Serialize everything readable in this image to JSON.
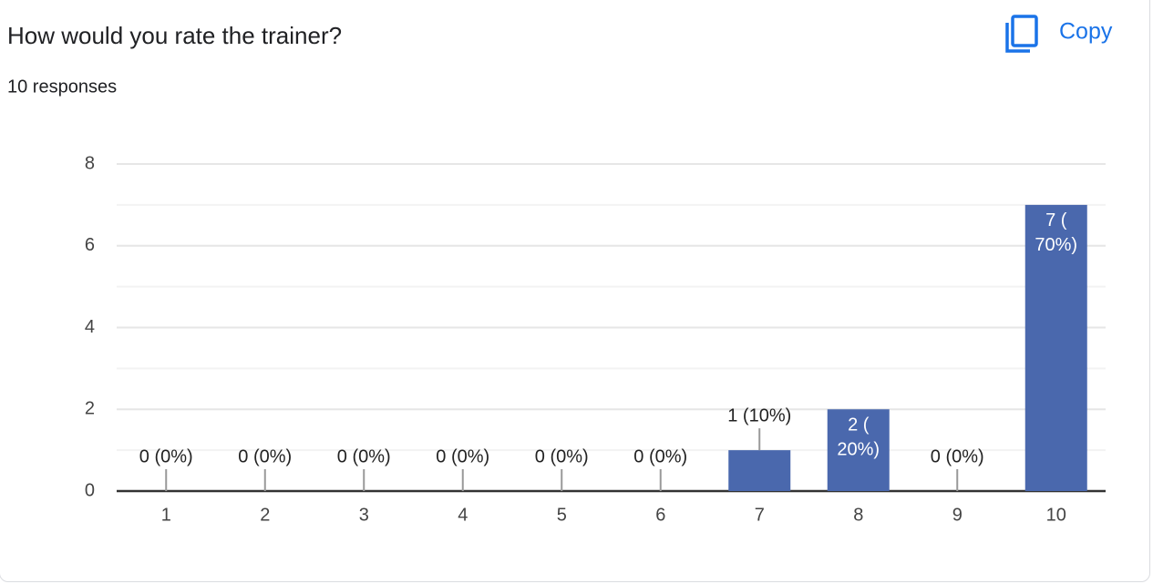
{
  "copy_label": "Copy",
  "chart_data": {
    "type": "bar",
    "title": "How would you rate the trainer?",
    "subtitle": "10 responses",
    "categories": [
      "1",
      "2",
      "3",
      "4",
      "5",
      "6",
      "7",
      "8",
      "9",
      "10"
    ],
    "values": [
      0,
      0,
      0,
      0,
      0,
      0,
      1,
      2,
      0,
      7
    ],
    "value_labels": [
      "0 (0%)",
      "0 (0%)",
      "0 (0%)",
      "0 (0%)",
      "0 (0%)",
      "0 (0%)",
      "1 (10%)",
      "2 (20%)",
      "0 (0%)",
      "7 (70%)"
    ],
    "color": "#4a68ad",
    "ylim": [
      0,
      8
    ],
    "yticks": [
      0,
      2,
      4,
      6,
      8
    ],
    "minor_yticks": [
      1,
      3,
      5,
      7
    ],
    "grid": true
  }
}
